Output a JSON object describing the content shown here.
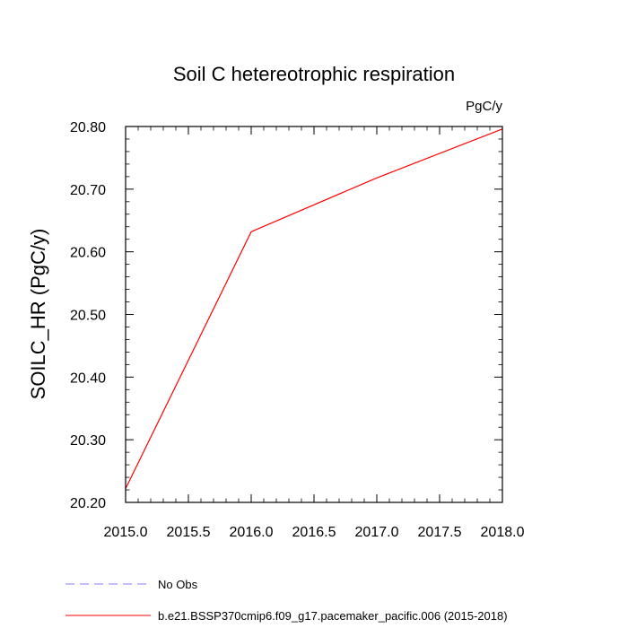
{
  "chart_data": {
    "type": "line",
    "title": "Soil C hetereotrophic respiration",
    "units": "PgC/y",
    "xlabel": "",
    "ylabel": "SOILC_HR  (PgC/y)",
    "xlim": [
      2015.0,
      2018.0
    ],
    "ylim": [
      20.2,
      20.8
    ],
    "x_ticks": [
      "2015.0",
      "2015.5",
      "2016.0",
      "2016.5",
      "2017.0",
      "2017.5",
      "2018.0"
    ],
    "y_ticks": [
      "20.20",
      "20.30",
      "20.40",
      "20.50",
      "20.60",
      "20.70",
      "20.80"
    ],
    "grid": false,
    "series": [
      {
        "name": "b.e21.BSSP370cmip6.f09_g17.pacemaker_pacific.006 (2015-2018)",
        "color": "#ff0000",
        "dash": "solid",
        "x": [
          2015.0,
          2016.0,
          2017.0,
          2018.0
        ],
        "y": [
          20.222,
          20.632,
          20.718,
          20.796
        ]
      }
    ],
    "legend": {
      "placement": "bottom",
      "entries": [
        {
          "label": "No Obs",
          "color": "#8080ff",
          "dash": "dashed"
        },
        {
          "label": "b.e21.BSSP370cmip6.f09_g17.pacemaker_pacific.006 (2015-2018)",
          "color": "#ff0000",
          "dash": "solid"
        }
      ]
    }
  }
}
